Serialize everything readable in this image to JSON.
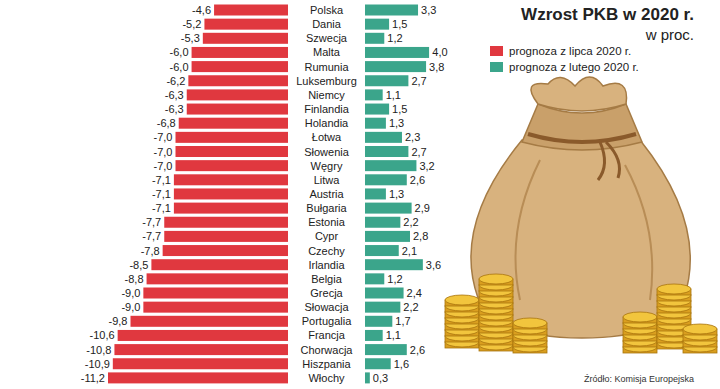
{
  "chart_data": {
    "type": "bar",
    "orientation": "horizontal",
    "title": "Wzrost PKB w 2020 r.",
    "subtitle": "w proc.",
    "source": "Źródło: Komisja Europejska",
    "categories": [
      "Polska",
      "Dania",
      "Szwecja",
      "Malta",
      "Rumunia",
      "Luksemburg",
      "Niemcy",
      "Finlandia",
      "Holandia",
      "Łotwa",
      "Słowenia",
      "Węgry",
      "Litwa",
      "Austria",
      "Bułgaria",
      "Estonia",
      "Cypr",
      "Czechy",
      "Irlandia",
      "Belgia",
      "Grecja",
      "Słowacja",
      "Portugalia",
      "Francja",
      "Chorwacja",
      "Hiszpania",
      "Włochy"
    ],
    "series": [
      {
        "name": "prognoza z lipca 2020 r.",
        "color": "#e0383f",
        "values": [
          -4.6,
          -5.2,
          -5.3,
          -6.0,
          -6.0,
          -6.2,
          -6.3,
          -6.3,
          -6.8,
          -7.0,
          -7.0,
          -7.0,
          -7.1,
          -7.1,
          -7.1,
          -7.7,
          -7.7,
          -7.8,
          -8.5,
          -8.8,
          -9.0,
          -9.0,
          -9.8,
          -10.6,
          -10.8,
          -10.9,
          -11.2
        ],
        "value_labels": [
          "-4,6",
          "-5,2",
          "-5,3",
          "-6,0",
          "-6,0",
          "-6,2",
          "-6,3",
          "-6,3",
          "-6,8",
          "-7,0",
          "-7,0",
          "-7,0",
          "-7,1",
          "-7,1",
          "-7,1",
          "-7,7",
          "-7,7",
          "-7,8",
          "-8,5",
          "-8,8",
          "-9,0",
          "-9,0",
          "-9,8",
          "-10,6",
          "-10,8",
          "-10,9",
          "-11,2"
        ]
      },
      {
        "name": "prognoza z lutego 2020 r.",
        "color": "#3ba58b",
        "values": [
          3.3,
          1.5,
          1.2,
          4.0,
          3.8,
          2.7,
          1.1,
          1.5,
          1.3,
          2.3,
          2.7,
          3.2,
          2.6,
          1.3,
          2.9,
          2.2,
          2.8,
          2.1,
          3.6,
          1.2,
          2.4,
          2.2,
          1.7,
          1.1,
          2.6,
          1.6,
          0.3
        ],
        "value_labels": [
          "3,3",
          "1,5",
          "1,2",
          "4,0",
          "3,8",
          "2,7",
          "1,1",
          "1,5",
          "1,3",
          "2,3",
          "2,7",
          "3,2",
          "2,6",
          "1,3",
          "2,9",
          "2,2",
          "2,8",
          "2,1",
          "3,6",
          "1,2",
          "2,4",
          "2,2",
          "1,7",
          "1,1",
          "2,6",
          "1,6",
          "0,3"
        ]
      }
    ],
    "xlim": [
      -11.2,
      4.0
    ],
    "data_labels": true,
    "tick_labels": "y",
    "grid": false,
    "legend": "top-right"
  }
}
